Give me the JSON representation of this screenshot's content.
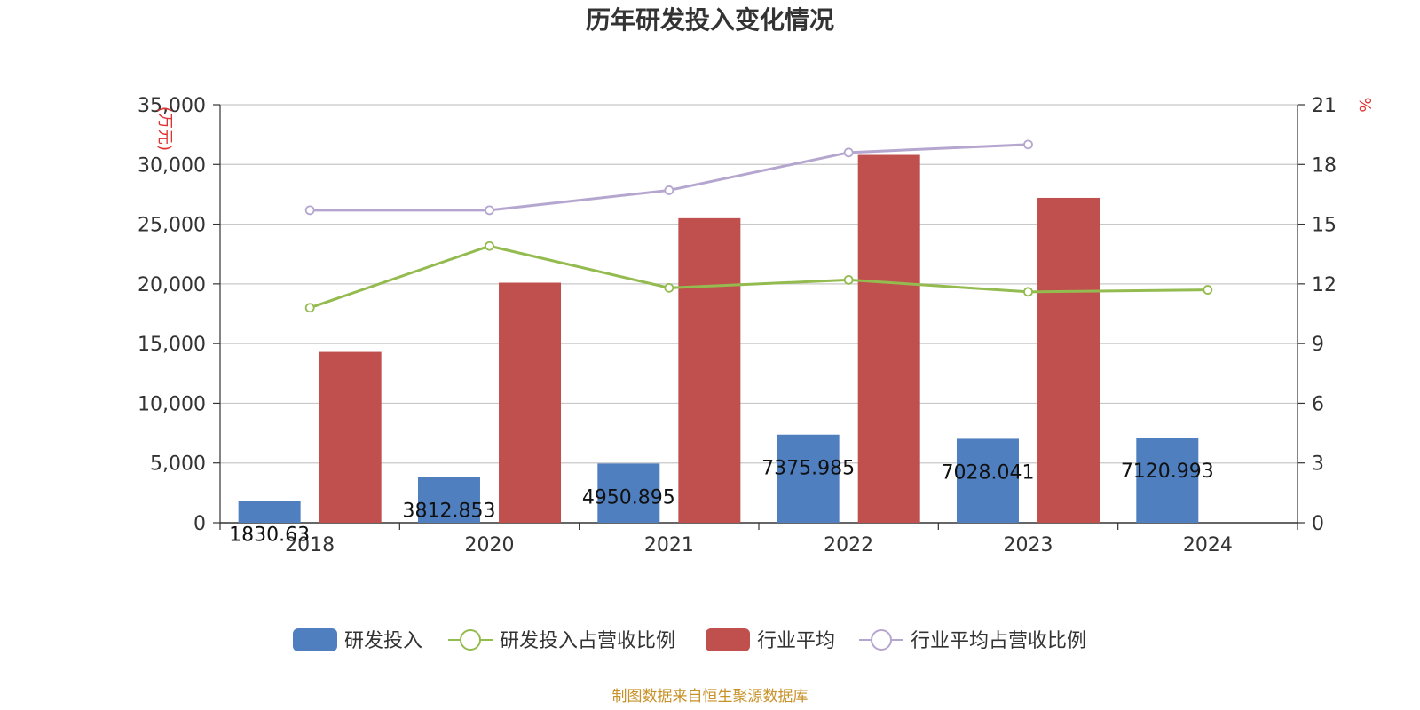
{
  "chart_data": {
    "type": "bar",
    "title": "历年研发投入变化情况",
    "categories": [
      "2018",
      "2020",
      "2021",
      "2022",
      "2023",
      "2024"
    ],
    "y_left": {
      "unit": "(万元)",
      "ylim": [
        0,
        35000
      ],
      "ticks": [
        "0",
        "5,000",
        "10,000",
        "15,000",
        "20,000",
        "25,000",
        "30,000",
        "35,000"
      ]
    },
    "y_right": {
      "unit": "%",
      "ylim": [
        0,
        21
      ],
      "ticks": [
        "0",
        "3",
        "6",
        "9",
        "12",
        "15",
        "18",
        "21"
      ]
    },
    "grid": true,
    "legend_position": "bottom",
    "series": [
      {
        "name": "研发投入",
        "type": "bar",
        "axis": "left",
        "color": "#4f7fbf",
        "values": [
          1830.63,
          3812.853,
          4950.895,
          7375.985,
          7028.041,
          7120.993
        ],
        "labels": [
          "1830.63",
          "3812.853",
          "4950.895",
          "7375.985",
          "7028.041",
          "7120.993"
        ]
      },
      {
        "name": "研发投入占营收比例",
        "type": "line",
        "axis": "right",
        "color": "#94bb4f",
        "values": [
          10.8,
          13.9,
          11.8,
          12.2,
          11.6,
          11.7
        ]
      },
      {
        "name": "行业平均",
        "type": "bar",
        "axis": "left",
        "color": "#c0504d",
        "values": [
          14300,
          20100,
          25500,
          30800,
          27200,
          null
        ]
      },
      {
        "name": "行业平均占营收比例",
        "type": "line",
        "axis": "right",
        "color": "#b4a6cf",
        "values": [
          15.7,
          15.7,
          16.7,
          18.6,
          19.0,
          null
        ]
      }
    ]
  },
  "footer": {
    "source": "制图数据来自恒生聚源数据库"
  }
}
